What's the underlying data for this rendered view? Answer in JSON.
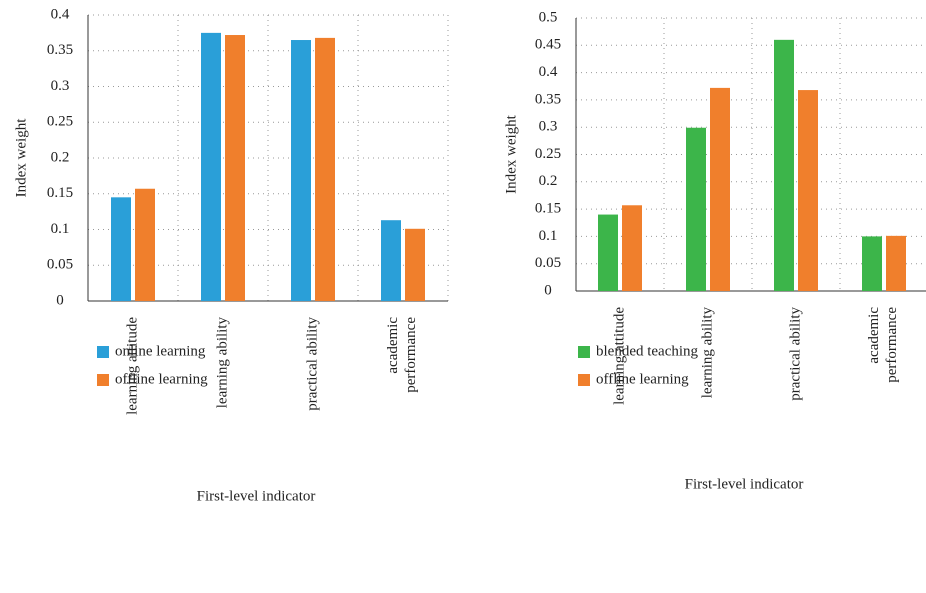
{
  "chart_data": [
    {
      "type": "bar",
      "categories": [
        "learning attitude",
        "learning ability",
        "practical ability",
        "academic\nperformance"
      ],
      "series": [
        {
          "name": "online learning",
          "color": "#2a9fd8",
          "values": [
            0.145,
            0.375,
            0.365,
            0.113
          ]
        },
        {
          "name": "offline learning",
          "color": "#f07f2c",
          "values": [
            0.157,
            0.372,
            0.368,
            0.101
          ]
        }
      ],
      "xlabel": "First-level indicator",
      "ylabel": "Index weight",
      "ylim": [
        0,
        0.4
      ],
      "yticks": [
        0,
        0.05,
        0.1,
        0.15,
        0.2,
        0.25,
        0.3,
        0.35,
        0.4
      ],
      "grid": true
    },
    {
      "type": "bar",
      "categories": [
        "learning attitude",
        "learning ability",
        "practical ability",
        "academic\nperformance"
      ],
      "series": [
        {
          "name": "blended teaching",
          "color": "#3cb54a",
          "values": [
            0.14,
            0.299,
            0.46,
            0.1
          ]
        },
        {
          "name": "offline learning",
          "color": "#f07f2c",
          "values": [
            0.157,
            0.372,
            0.368,
            0.101
          ]
        }
      ],
      "xlabel": "First-level indicator",
      "ylabel": "Index weight",
      "ylim": [
        0,
        0.5
      ],
      "yticks": [
        0,
        0.05,
        0.1,
        0.15,
        0.2,
        0.25,
        0.3,
        0.35,
        0.4,
        0.45,
        0.5
      ],
      "grid": true
    }
  ]
}
